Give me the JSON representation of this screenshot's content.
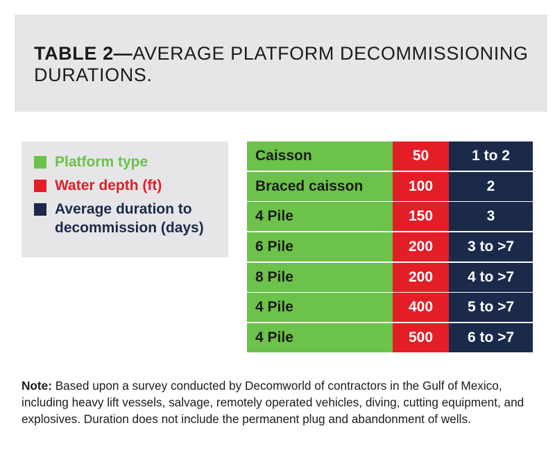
{
  "title": {
    "bold": "TABLE 2—",
    "line1": "AVERAGE PLATFORM DECOMMISSIONING",
    "line2": "DURATIONS."
  },
  "legend": {
    "items": [
      {
        "label": "Platform type",
        "color": "#6cc24a"
      },
      {
        "label": "Water depth (ft)",
        "color": "#e31e27"
      },
      {
        "label": "Average duration to",
        "label2": "decommission (days)",
        "color": "#1b2a4a"
      }
    ]
  },
  "table": {
    "rows": [
      {
        "type": "Caisson",
        "depth": "50",
        "duration": "1 to 2"
      },
      {
        "type": "Braced caisson",
        "depth": "100",
        "duration": "2"
      },
      {
        "type": "4 Pile",
        "depth": "150",
        "duration": "3"
      },
      {
        "type": "6 Pile",
        "depth": "200",
        "duration": "3 to >7"
      },
      {
        "type": "8 Pile",
        "depth": "200",
        "duration": "4 to >7"
      },
      {
        "type": "4 Pile",
        "depth": "400",
        "duration": "5 to >7"
      },
      {
        "type": "4 Pile",
        "depth": "500",
        "duration": "6 to >7"
      }
    ]
  },
  "note": {
    "label": "Note:",
    "text": "Based upon a survey conducted by Decomworld of contractors in the Gulf of Mexico, including heavy lift vessels, salvage, remotely operated vehicles, diving, cutting equipment, and explosives. Duration does not include the permanent plug and abandonment of wells."
  }
}
